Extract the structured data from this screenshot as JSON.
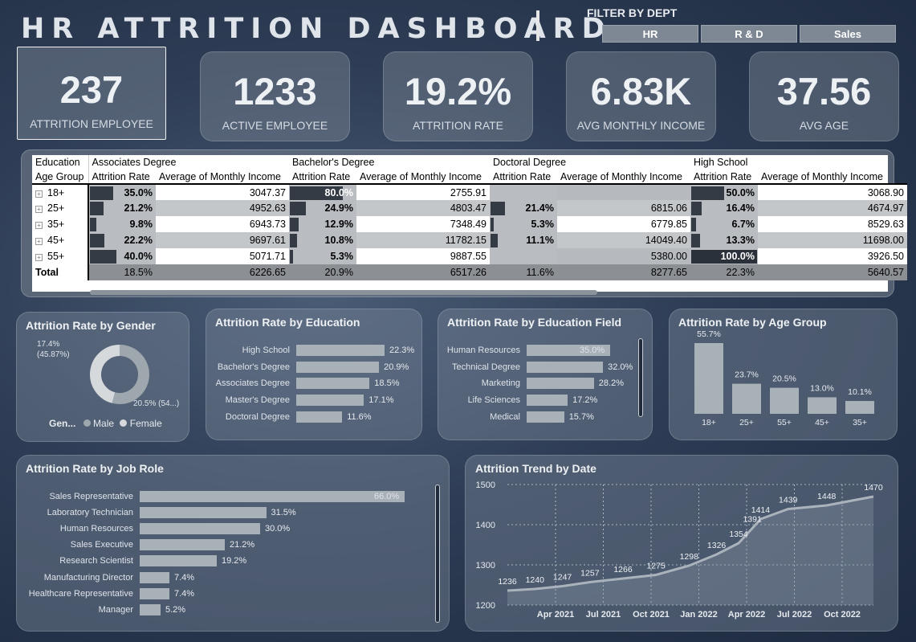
{
  "header": {
    "title": "HR ATTRITION DASHBOARD",
    "filter_label": "FILTER BY DEPT",
    "filters": [
      "HR",
      "R & D",
      "Sales"
    ]
  },
  "kpis": [
    {
      "value": "237",
      "label": "ATTRITION EMPLOYEE"
    },
    {
      "value": "1233",
      "label": "ACTIVE EMPLOYEE"
    },
    {
      "value": "19.2%",
      "label": "ATTRITION RATE"
    },
    {
      "value": "6.83K",
      "label": "AVG MONTHLY INCOME"
    },
    {
      "value": "37.56",
      "label": "AVG AGE"
    }
  ],
  "matrix": {
    "row_header": "Education",
    "col_header": "Age Group",
    "groups": [
      "Associates Degree",
      "Bachelor's Degree",
      "Doctoral Degree",
      "High School"
    ],
    "measures": [
      "Attrition Rate",
      "Average of Monthly Income"
    ],
    "rows": [
      {
        "age": "18+",
        "cells": [
          [
            "35.0%",
            "3047.37"
          ],
          [
            "80.0%",
            "2755.91"
          ],
          [
            "",
            ""
          ],
          [
            "50.0%",
            "3068.90"
          ]
        ],
        "rates": [
          35.0,
          80.0,
          0,
          50.0
        ]
      },
      {
        "age": "25+",
        "cells": [
          [
            "21.2%",
            "4952.63"
          ],
          [
            "24.9%",
            "4803.47"
          ],
          [
            "21.4%",
            "6815.06"
          ],
          [
            "16.4%",
            "4674.97"
          ]
        ],
        "rates": [
          21.2,
          24.9,
          21.4,
          16.4
        ]
      },
      {
        "age": "35+",
        "cells": [
          [
            "9.8%",
            "6943.73"
          ],
          [
            "12.9%",
            "7348.49"
          ],
          [
            "5.3%",
            "6779.85"
          ],
          [
            "6.7%",
            "8529.63"
          ]
        ],
        "rates": [
          9.8,
          12.9,
          5.3,
          6.7
        ]
      },
      {
        "age": "45+",
        "cells": [
          [
            "22.2%",
            "9697.61"
          ],
          [
            "10.8%",
            "11782.15"
          ],
          [
            "11.1%",
            "14049.40"
          ],
          [
            "13.3%",
            "11698.00"
          ]
        ],
        "rates": [
          22.2,
          10.8,
          11.1,
          13.3
        ]
      },
      {
        "age": "55+",
        "cells": [
          [
            "40.0%",
            "5071.71"
          ],
          [
            "5.3%",
            "9887.55"
          ],
          [
            "",
            "5380.00"
          ],
          [
            "100.0%",
            "3926.50"
          ]
        ],
        "rates": [
          40.0,
          5.3,
          0,
          100.0
        ]
      }
    ],
    "total": {
      "label": "Total",
      "cells": [
        [
          "18.5%",
          "6226.65"
        ],
        [
          "20.9%",
          "6517.26"
        ],
        [
          "11.6%",
          "8277.65"
        ],
        [
          "22.3%",
          "5640.57"
        ]
      ]
    }
  },
  "gender": {
    "title": "Attrition Rate by Gender",
    "male": 17.4,
    "female": 20.5,
    "label_a": "17.4%",
    "label_a2": "(45.87%)",
    "label_b": "20.5% (54...)",
    "legend_title": "Gen...",
    "legend_male": "Male",
    "legend_female": "Female",
    "colors": [
      "#d6d9dc",
      "#9ea6ae"
    ]
  },
  "education": {
    "title": "Attrition Rate by Education",
    "items": [
      {
        "label": "High School",
        "value": 22.3,
        "text": "22.3%"
      },
      {
        "label": "Bachelor's Degree",
        "value": 20.9,
        "text": "20.9%"
      },
      {
        "label": "Associates Degree",
        "value": 18.5,
        "text": "18.5%"
      },
      {
        "label": "Master's Degree",
        "value": 17.1,
        "text": "17.1%"
      },
      {
        "label": "Doctoral Degree",
        "value": 11.6,
        "text": "11.6%"
      }
    ]
  },
  "edu_field": {
    "title": "Attrition Rate by Education Field",
    "items": [
      {
        "label": "Human Resources",
        "value": 35.0,
        "text": "35.0%"
      },
      {
        "label": "Technical Degree",
        "value": 32.0,
        "text": "32.0%"
      },
      {
        "label": "Marketing",
        "value": 28.2,
        "text": "28.2%"
      },
      {
        "label": "Life Sciences",
        "value": 17.2,
        "text": "17.2%"
      },
      {
        "label": "Medical",
        "value": 15.7,
        "text": "15.7%"
      }
    ]
  },
  "age_group": {
    "title": "Attrition Rate by Age Group",
    "items": [
      {
        "label": "18+",
        "value": 55.7,
        "text": "55.7%"
      },
      {
        "label": "25+",
        "value": 23.7,
        "text": "23.7%"
      },
      {
        "label": "55+",
        "value": 20.5,
        "text": "20.5%"
      },
      {
        "label": "45+",
        "value": 13.0,
        "text": "13.0%"
      },
      {
        "label": "35+",
        "value": 10.1,
        "text": "10.1%"
      }
    ]
  },
  "job_role": {
    "title": "Attrition Rate by Job Role",
    "items": [
      {
        "label": "Sales Representative",
        "value": 66.0,
        "text": "66.0%"
      },
      {
        "label": "Laboratory Technician",
        "value": 31.5,
        "text": "31.5%"
      },
      {
        "label": "Human Resources",
        "value": 30.0,
        "text": "30.0%"
      },
      {
        "label": "Sales Executive",
        "value": 21.2,
        "text": "21.2%"
      },
      {
        "label": "Research Scientist",
        "value": 19.2,
        "text": "19.2%"
      },
      {
        "label": "Manufacturing Director",
        "value": 7.4,
        "text": "7.4%"
      },
      {
        "label": "Healthcare Representative",
        "value": 7.4,
        "text": "7.4%"
      },
      {
        "label": "Manager",
        "value": 5.2,
        "text": "5.2%"
      }
    ]
  },
  "chart_data": {
    "type": "area",
    "title": "Attrition Trend by Date",
    "ylim": [
      1200,
      1500
    ],
    "yticks": [
      1200,
      1300,
      1400,
      1500
    ],
    "xticks": [
      "Apr 2021",
      "Jul 2021",
      "Oct 2021",
      "Jan 2022",
      "Apr 2022",
      "Jul 2022",
      "Oct 2022"
    ],
    "points": [
      {
        "t": 0.0,
        "y": 1236
      },
      {
        "t": 1.0,
        "y": 1240
      },
      {
        "t": 2.0,
        "y": 1247
      },
      {
        "t": 3.0,
        "y": 1257
      },
      {
        "t": 4.2,
        "y": 1266
      },
      {
        "t": 5.4,
        "y": 1275
      },
      {
        "t": 6.6,
        "y": 1298
      },
      {
        "t": 7.6,
        "y": 1326
      },
      {
        "t": 8.4,
        "y": 1354
      },
      {
        "t": 8.9,
        "y": 1391
      },
      {
        "t": 9.2,
        "y": 1414
      },
      {
        "t": 10.2,
        "y": 1439
      },
      {
        "t": 11.6,
        "y": 1448
      },
      {
        "t": 13.3,
        "y": 1470
      }
    ],
    "labels": [
      "1236",
      "1240",
      "1247",
      "1257",
      "1266",
      "1275",
      "1298",
      "1326",
      "1354",
      "1391",
      "1414",
      "1439",
      "1448",
      "1470"
    ]
  }
}
